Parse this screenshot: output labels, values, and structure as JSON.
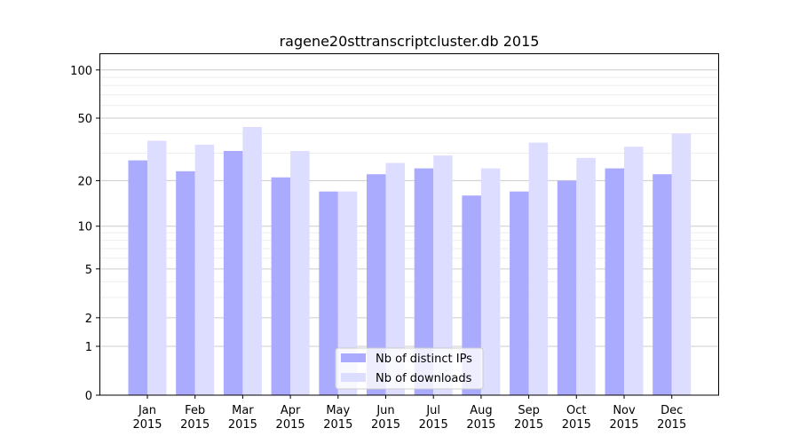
{
  "chart_data": {
    "type": "bar",
    "title": "ragene20sttranscriptcluster.db 2015",
    "xlabel": "",
    "ylabel": "",
    "yscale": "symlog (log10(1+y))",
    "ylim": [
      0,
      127
    ],
    "yticks": [
      0,
      1,
      2,
      5,
      10,
      20,
      50,
      100
    ],
    "grid": true,
    "legend_position": "bottom-center",
    "categories": [
      "Jan\n2015",
      "Feb\n2015",
      "Mar\n2015",
      "Apr\n2015",
      "May\n2015",
      "Jun\n2015",
      "Jul\n2015",
      "Aug\n2015",
      "Sep\n2015",
      "Oct\n2015",
      "Nov\n2015",
      "Dec\n2015"
    ],
    "series": [
      {
        "name": "Nb of distinct IPs",
        "color": "#aaaaff",
        "values": [
          27,
          23,
          31,
          21,
          17,
          22,
          24,
          16,
          17,
          20,
          24,
          22
        ]
      },
      {
        "name": "Nb of downloads",
        "color": "#ddddff",
        "values": [
          36,
          34,
          44,
          31,
          17,
          26,
          29,
          24,
          35,
          28,
          33,
          40
        ]
      }
    ]
  }
}
